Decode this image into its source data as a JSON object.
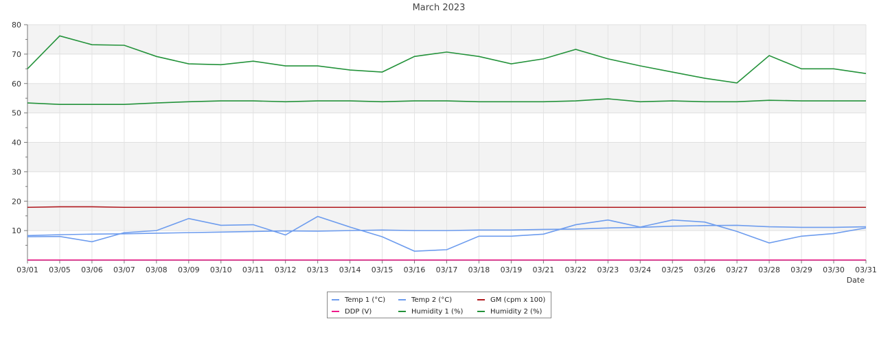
{
  "chart_data": {
    "type": "line",
    "title": "March 2023",
    "xlabel": "Date",
    "ylabel": "",
    "ylim": [
      0,
      80
    ],
    "yticks": [
      10,
      20,
      30,
      40,
      50,
      60,
      70,
      80
    ],
    "grid": true,
    "legend_position": "bottom-center",
    "categories": [
      "03/01",
      "03/05",
      "03/06",
      "03/07",
      "03/08",
      "03/09",
      "03/10",
      "03/11",
      "03/12",
      "03/13",
      "03/14",
      "03/15",
      "03/16",
      "03/17",
      "03/18",
      "03/19",
      "03/21",
      "03/22",
      "03/23",
      "03/24",
      "03/25",
      "03/26",
      "03/27",
      "03/28",
      "03/29",
      "03/30",
      "03/31"
    ],
    "series": [
      {
        "name": "Temp 1 (°C)",
        "color": "#6d9cee",
        "values": [
          8.3,
          8.6,
          8.8,
          8.9,
          9.1,
          9.3,
          9.5,
          9.7,
          9.9,
          9.8,
          10.0,
          10.2,
          10.0,
          10.0,
          10.2,
          10.2,
          10.4,
          10.5,
          10.9,
          11.1,
          11.5,
          11.7,
          11.8,
          11.3,
          11.1,
          11.1,
          11.3
        ]
      },
      {
        "name": "Temp 2 (°C)",
        "color": "#6d9cee",
        "values": [
          7.9,
          8.0,
          6.2,
          9.3,
          10.0,
          14.1,
          11.8,
          12.0,
          8.5,
          14.8,
          11.2,
          7.9,
          3.0,
          3.5,
          8.1,
          8.1,
          8.8,
          12.0,
          13.6,
          11.2,
          13.6,
          12.9,
          9.7,
          5.8,
          8.1,
          9.0,
          10.9
        ]
      },
      {
        "name": "GM (cpm x 100)",
        "color": "#b0181e",
        "values": [
          17.9,
          18.1,
          18.1,
          17.9,
          17.9,
          17.9,
          17.9,
          17.9,
          17.9,
          17.9,
          17.9,
          17.9,
          17.9,
          17.9,
          17.9,
          17.9,
          17.9,
          17.9,
          17.9,
          17.9,
          17.9,
          17.9,
          17.9,
          17.9,
          17.9,
          17.9,
          17.9
        ]
      },
      {
        "name": "DDP (V)",
        "color": "#ee1a8a",
        "values": [
          0,
          0,
          0,
          0,
          0,
          0,
          0,
          0,
          0,
          0,
          0,
          0,
          0,
          0,
          0,
          0,
          0,
          0,
          0,
          0,
          0,
          0,
          0,
          0,
          0,
          0,
          0
        ]
      },
      {
        "name": "Humidity 1 (%)",
        "color": "#23923a",
        "values": [
          65.0,
          76.2,
          73.2,
          73.0,
          69.2,
          66.7,
          66.4,
          67.6,
          66.0,
          66.0,
          64.6,
          63.9,
          69.2,
          70.7,
          69.2,
          66.7,
          68.4,
          71.6,
          68.4,
          66.0,
          63.9,
          61.8,
          60.2,
          69.5,
          65.0,
          65.0,
          63.4
        ]
      },
      {
        "name": "Humidity 2 (%)",
        "color": "#23923a",
        "values": [
          53.4,
          52.9,
          52.9,
          52.9,
          53.4,
          53.8,
          54.1,
          54.1,
          53.8,
          54.1,
          54.1,
          53.8,
          54.1,
          54.1,
          53.8,
          53.8,
          53.8,
          54.1,
          54.8,
          53.8,
          54.1,
          53.8,
          53.8,
          54.3,
          54.1,
          54.1,
          54.1
        ]
      }
    ]
  }
}
